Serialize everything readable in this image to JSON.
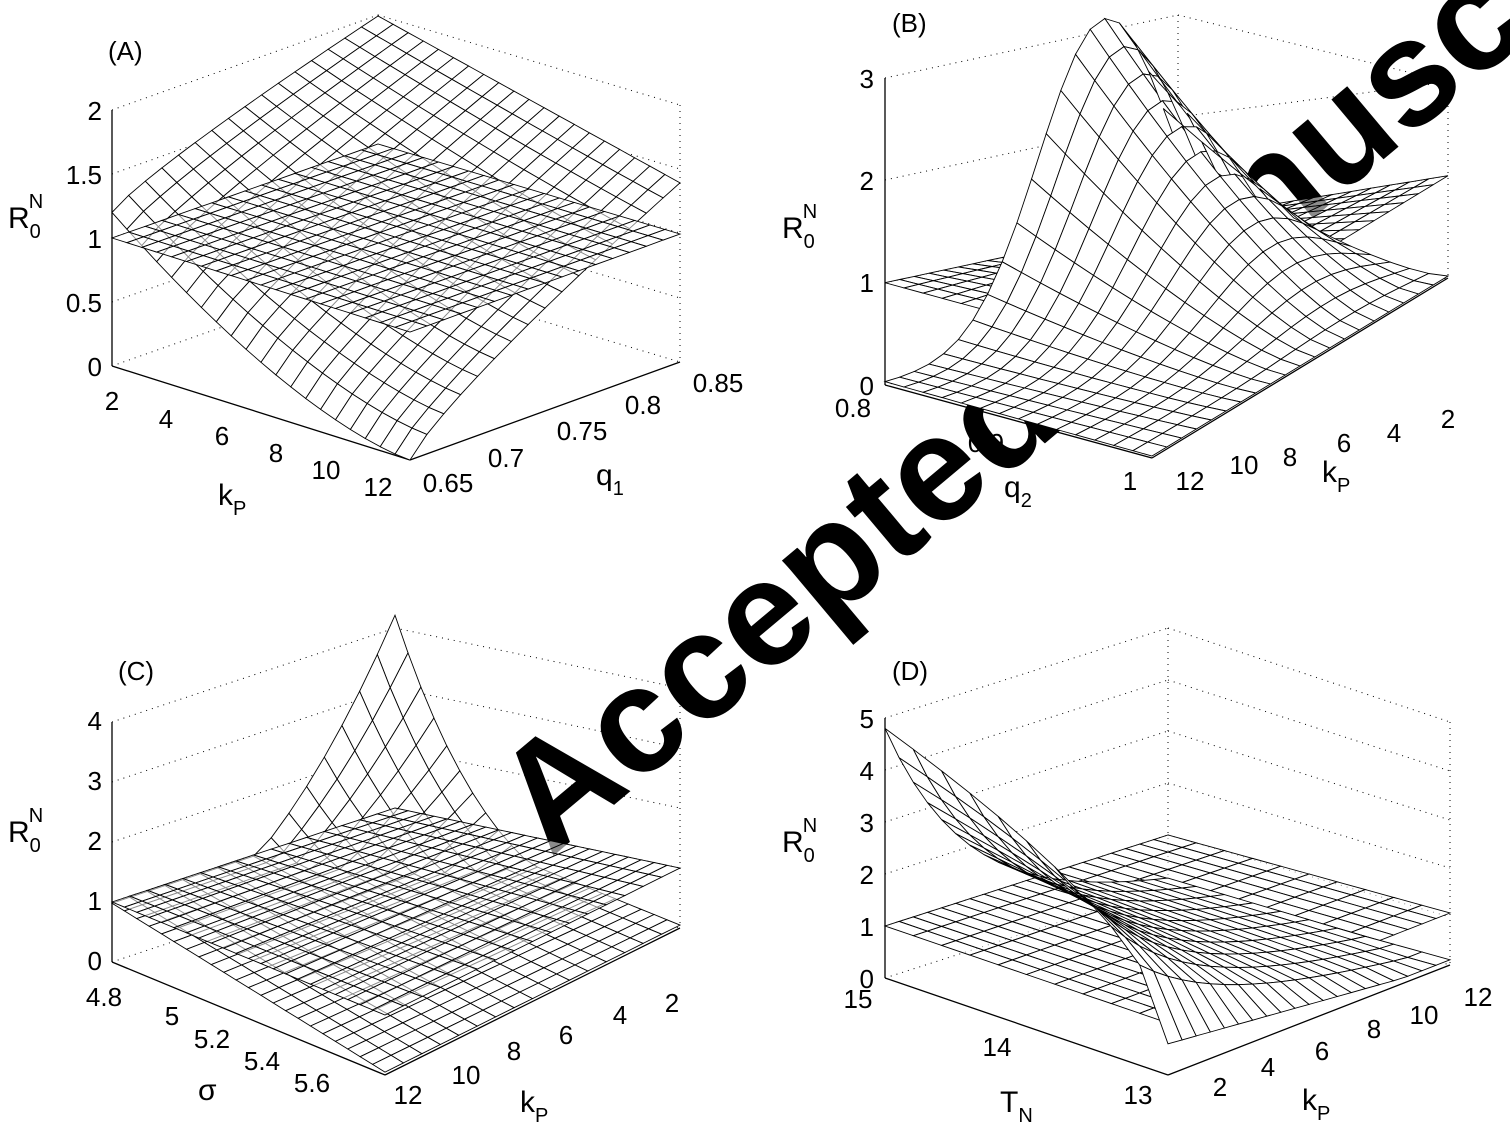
{
  "watermark": "Accepted manuscript",
  "chart_data": [
    {
      "type": "surface",
      "panel_label": "(A)",
      "zlabel": {
        "main": "R",
        "sub": "0",
        "sup": "N"
      },
      "xlabel": {
        "main": "k",
        "sub": "P"
      },
      "ylabel": {
        "main": "q",
        "sub": "1"
      },
      "x_ticks": [
        "2",
        "4",
        "6",
        "8",
        "10",
        "12"
      ],
      "y_ticks": [
        "0.65",
        "0.7",
        "0.75",
        "0.8",
        "0.85"
      ],
      "z_ticks": [
        "0",
        "0.5",
        "1",
        "1.5",
        "2"
      ],
      "xlim": [
        2,
        12
      ],
      "ylim": [
        0.65,
        0.85
      ],
      "zlim": [
        0,
        2
      ],
      "corner_values": [
        [
          2,
          0.65,
          1.2
        ],
        [
          12,
          0.65,
          0.0
        ],
        [
          2,
          0.85,
          2.0
        ],
        [
          12,
          0.85,
          1.4
        ]
      ],
      "reference_plane_z": 1,
      "grid": true
    },
    {
      "type": "surface",
      "panel_label": "(B)",
      "zlabel": {
        "main": "R",
        "sub": "0",
        "sup": "N"
      },
      "xlabel": {
        "main": "q",
        "sub": "2"
      },
      "ylabel": {
        "main": "k",
        "sub": "P"
      },
      "x_ticks": [
        "0.8",
        "0.9",
        "1"
      ],
      "y_ticks": [
        "12",
        "10",
        "8",
        "6",
        "4",
        "2"
      ],
      "z_ticks": [
        "0",
        "1",
        "2",
        "3"
      ],
      "xlim": [
        0.8,
        1.0
      ],
      "ylim": [
        2,
        12
      ],
      "zlim": [
        0,
        3
      ],
      "peak_value": 3.1,
      "reference_plane_z": 1,
      "grid": true
    },
    {
      "type": "surface",
      "panel_label": "(C)",
      "zlabel": {
        "main": "R",
        "sub": "0",
        "sup": "N"
      },
      "xlabel": {
        "main": "σ",
        "sub": ""
      },
      "ylabel": {
        "main": "k",
        "sub": "P"
      },
      "x_ticks": [
        "4.8",
        "5",
        "5.2",
        "5.4",
        "5.6"
      ],
      "y_ticks": [
        "12",
        "10",
        "8",
        "6",
        "4",
        "2"
      ],
      "z_ticks": [
        "0",
        "1",
        "2",
        "3",
        "4"
      ],
      "xlim": [
        4.8,
        5.7
      ],
      "ylim": [
        2,
        12
      ],
      "zlim": [
        0,
        4
      ],
      "peak_value": 4.3,
      "reference_plane_z": 1,
      "grid": true
    },
    {
      "type": "surface",
      "panel_label": "(D)",
      "zlabel": {
        "main": "R",
        "sub": "0",
        "sup": "N"
      },
      "xlabel": {
        "main": "T",
        "sub": "N"
      },
      "ylabel": {
        "main": "k",
        "sub": "P"
      },
      "x_ticks": [
        "15",
        "14",
        "13"
      ],
      "y_ticks": [
        "2",
        "4",
        "6",
        "8",
        "10",
        "12"
      ],
      "z_ticks": [
        "0",
        "1",
        "2",
        "3",
        "4",
        "5"
      ],
      "xlim": [
        13,
        15
      ],
      "ylim": [
        2,
        12
      ],
      "zlim": [
        0,
        5
      ],
      "peak_value": 4.2,
      "reference_plane_z": 1,
      "grid": true
    }
  ]
}
